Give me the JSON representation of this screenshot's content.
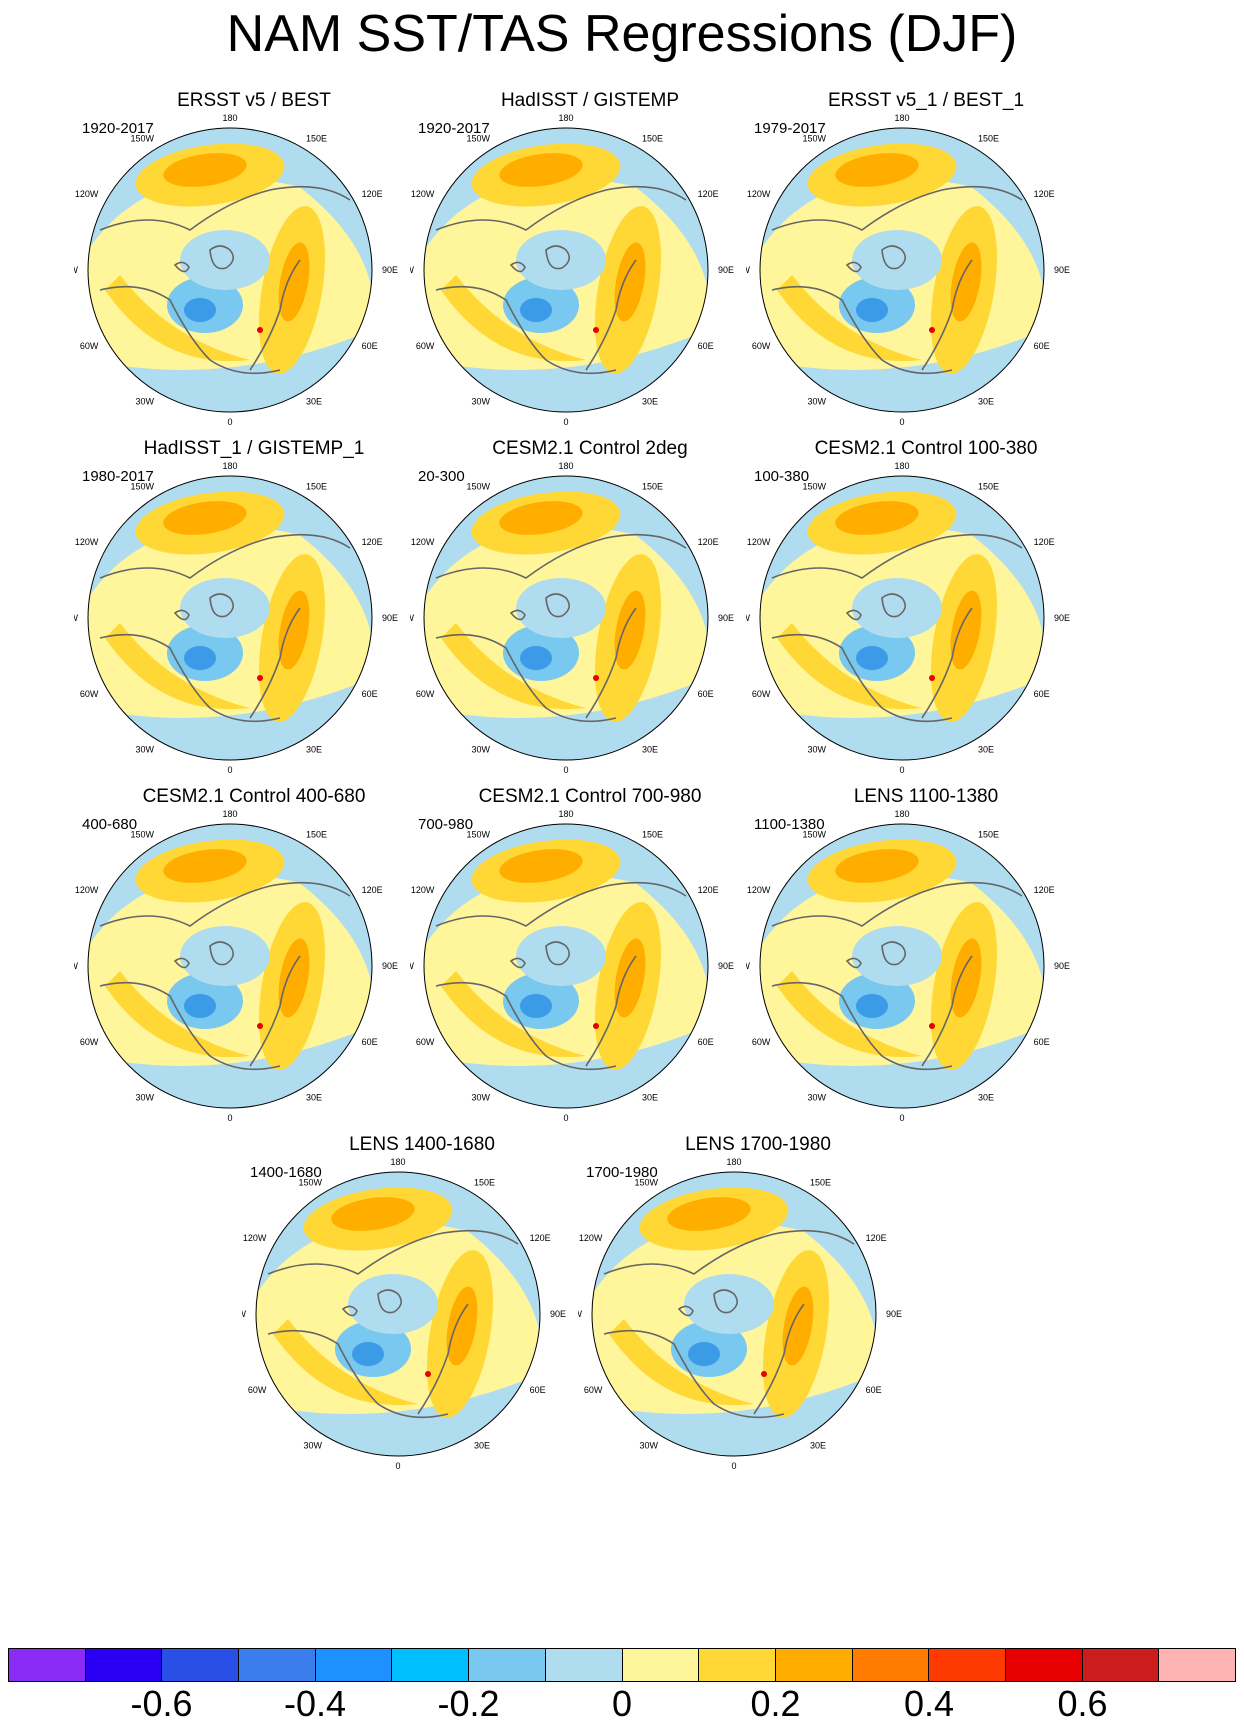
{
  "title": "NAM SST/TAS Regressions (DJF)",
  "lon_labels": [
    "180",
    "150E",
    "120E",
    "90E",
    "60E",
    "30E",
    "0",
    "30W",
    "60W",
    "90W",
    "120W",
    "150W"
  ],
  "panels": [
    {
      "title": "ERSST v5 / BEST",
      "period": "1920-2017"
    },
    {
      "title": "HadISST / GISTEMP",
      "period": "1920-2017"
    },
    {
      "title": "ERSST v5_1 / BEST_1",
      "period": "1979-2017"
    },
    {
      "title": "HadISST_1 / GISTEMP_1",
      "period": "1980-2017"
    },
    {
      "title": "CESM2.1 Control 2deg",
      "period": "20-300"
    },
    {
      "title": "CESM2.1 Control 100-380",
      "period": "100-380"
    },
    {
      "title": "CESM2.1 Control 400-680",
      "period": "400-680"
    },
    {
      "title": "CESM2.1 Control 700-980",
      "period": "700-980"
    },
    {
      "title": "LENS 1100-1380",
      "period": "1100-1380"
    },
    {
      "title": "LENS 1400-1680",
      "period": "1400-1680"
    },
    {
      "title": "LENS 1700-1980",
      "period": "1700-1980"
    }
  ],
  "colorbar": {
    "colors": [
      "#8a2cf5",
      "#2a00f5",
      "#2a4fe6",
      "#3c7dee",
      "#1e90ff",
      "#00bfff",
      "#78c8f0",
      "#b0dcf0",
      "#fff59a",
      "#ffd836",
      "#ffae00",
      "#ff7c00",
      "#ff3a00",
      "#e80000",
      "#cc1c1c",
      "#ffb4b4"
    ],
    "labels": [
      "-0.6",
      "-0.4",
      "-0.2",
      "0",
      "0.2",
      "0.4",
      "0.6"
    ]
  },
  "map_colors": {
    "land_cold": "#b0dcf0",
    "ocean_warm": "#fff59a",
    "moderate_warm": "#ffd836",
    "strong_warm": "#ffae00",
    "moderate_cold": "#78c8f0",
    "strong_cold": "#3c9be6",
    "coast": "#666666",
    "extreme_warm": "#e80000"
  }
}
